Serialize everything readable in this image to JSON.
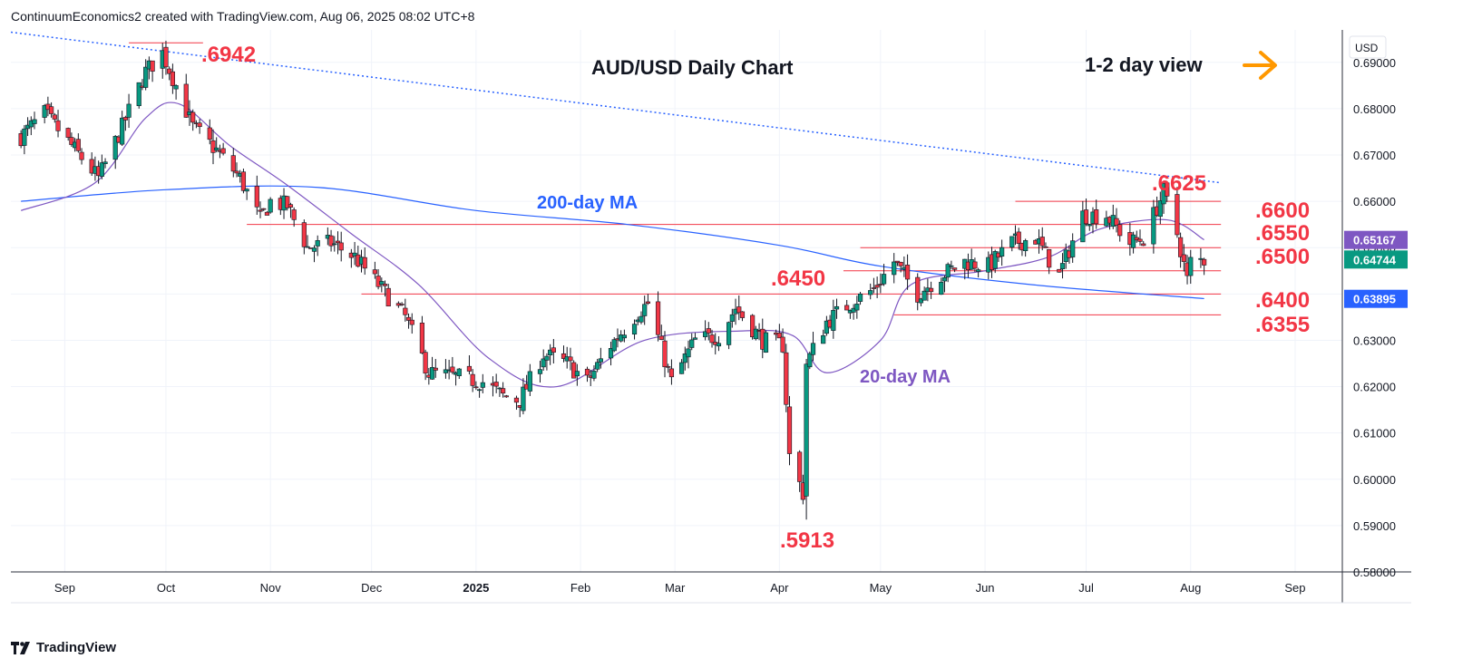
{
  "header": {
    "text": "ContinuumEconomics2 created with TradingView.com, Aug 06, 2025 08:02 UTC+8"
  },
  "footer": {
    "brand": "TradingView",
    "logo_icon": "tradingview-logo-icon"
  },
  "chart_data": {
    "type": "candlestick",
    "symbol": "AUD/USD",
    "title": "AUD/USD Daily Chart",
    "view_label": "1-2 day view",
    "view_icon": "arrow-right-icon",
    "currency": "USD",
    "colors": {
      "up": "#089981",
      "down": "#f23645",
      "level": "#f23645",
      "ma200": "#2962ff",
      "ma20": "#7e57c2",
      "trend": "#2962ff",
      "view_arrow": "#ff9800"
    },
    "ylim": [
      0.58,
      0.697
    ],
    "y_ticks": [
      "0.69000",
      "0.68000",
      "0.67000",
      "0.66000",
      "0.65000",
      "0.64000",
      "0.63000",
      "0.62000",
      "0.61000",
      "0.60000",
      "0.59000",
      "0.58000"
    ],
    "y_tick_values": [
      0.69,
      0.68,
      0.67,
      0.66,
      0.65,
      0.64,
      0.63,
      0.62,
      0.61,
      0.6,
      0.59,
      0.58
    ],
    "x_ticks": [
      "Sep",
      "Oct",
      "Nov",
      "Dec",
      "2025",
      "Feb",
      "Mar",
      "Apr",
      "May",
      "Jun",
      "Jul",
      "Aug",
      "Sep"
    ],
    "x_tick_dates": [
      "2024-09-01",
      "2024-10-01",
      "2024-11-01",
      "2024-12-01",
      "2025-01-01",
      "2025-02-01",
      "2025-03-01",
      "2025-04-01",
      "2025-05-01",
      "2025-06-01",
      "2025-07-01",
      "2025-08-01",
      "2025-09-01"
    ],
    "x_range": [
      "2024-08-16",
      "2025-09-15"
    ],
    "ohlc_anchors": [
      {
        "d": "2024-08-19",
        "c": 0.674
      },
      {
        "d": "2024-08-26",
        "c": 0.679
      },
      {
        "d": "2024-09-03",
        "c": 0.672
      },
      {
        "d": "2024-09-11",
        "c": 0.665
      },
      {
        "d": "2024-09-18",
        "c": 0.676
      },
      {
        "d": "2024-09-25",
        "c": 0.688
      },
      {
        "d": "2024-09-30",
        "c": 0.692
      },
      {
        "d": "2024-10-04",
        "c": 0.685
      },
      {
        "d": "2024-10-09",
        "c": 0.676
      },
      {
        "d": "2024-10-16",
        "c": 0.671
      },
      {
        "d": "2024-10-23",
        "c": 0.665
      },
      {
        "d": "2024-10-29",
        "c": 0.656
      },
      {
        "d": "2024-11-01",
        "c": 0.66
      },
      {
        "d": "2024-11-06",
        "c": 0.659
      },
      {
        "d": "2024-11-12",
        "c": 0.65
      },
      {
        "d": "2024-11-19",
        "c": 0.651
      },
      {
        "d": "2024-11-26",
        "c": 0.648
      },
      {
        "d": "2024-12-03",
        "c": 0.642
      },
      {
        "d": "2024-12-11",
        "c": 0.635
      },
      {
        "d": "2024-12-18",
        "c": 0.623
      },
      {
        "d": "2024-12-27",
        "c": 0.622
      },
      {
        "d": "2025-01-03",
        "c": 0.621
      },
      {
        "d": "2025-01-09",
        "c": 0.618
      },
      {
        "d": "2025-01-14",
        "c": 0.617
      },
      {
        "d": "2025-01-21",
        "c": 0.627
      },
      {
        "d": "2025-01-28",
        "c": 0.625
      },
      {
        "d": "2025-02-03",
        "c": 0.621
      },
      {
        "d": "2025-02-10",
        "c": 0.629
      },
      {
        "d": "2025-02-18",
        "c": 0.636
      },
      {
        "d": "2025-02-21",
        "c": 0.638
      },
      {
        "d": "2025-02-28",
        "c": 0.621
      },
      {
        "d": "2025-03-07",
        "c": 0.63
      },
      {
        "d": "2025-03-14",
        "c": 0.631
      },
      {
        "d": "2025-03-19",
        "c": 0.637
      },
      {
        "d": "2025-03-27",
        "c": 0.63
      },
      {
        "d": "2025-04-02",
        "c": 0.629
      },
      {
        "d": "2025-04-04",
        "c": 0.605
      },
      {
        "d": "2025-04-08",
        "c": 0.597
      },
      {
        "d": "2025-04-09",
        "c": 0.625
      },
      {
        "d": "2025-04-15",
        "c": 0.634
      },
      {
        "d": "2025-04-22",
        "c": 0.638
      },
      {
        "d": "2025-04-29",
        "c": 0.641
      },
      {
        "d": "2025-05-05",
        "c": 0.647
      },
      {
        "d": "2025-05-12",
        "c": 0.64
      },
      {
        "d": "2025-05-19",
        "c": 0.644
      },
      {
        "d": "2025-05-26",
        "c": 0.647
      },
      {
        "d": "2025-06-02",
        "c": 0.646
      },
      {
        "d": "2025-06-09",
        "c": 0.651
      },
      {
        "d": "2025-06-16",
        "c": 0.652
      },
      {
        "d": "2025-06-23",
        "c": 0.644
      },
      {
        "d": "2025-06-30",
        "c": 0.657
      },
      {
        "d": "2025-07-07",
        "c": 0.657
      },
      {
        "d": "2025-07-14",
        "c": 0.651
      },
      {
        "d": "2025-07-18",
        "c": 0.652
      },
      {
        "d": "2025-07-24",
        "c": 0.662
      },
      {
        "d": "2025-07-28",
        "c": 0.653
      },
      {
        "d": "2025-07-31",
        "c": 0.643
      },
      {
        "d": "2025-08-01",
        "c": 0.647
      },
      {
        "d": "2025-08-05",
        "c": 0.6474
      }
    ],
    "extremes": [
      {
        "d": "2024-09-30",
        "low": 0.6905,
        "high": 0.6942
      },
      {
        "d": "2025-04-09",
        "low": 0.5913,
        "high": 0.613
      },
      {
        "d": "2025-07-24",
        "low": 0.659,
        "high": 0.6625
      }
    ],
    "ma200": [
      [
        "2024-08-19",
        0.66
      ],
      [
        "2024-10-01",
        0.6625
      ],
      [
        "2024-11-15",
        0.663
      ],
      [
        "2025-01-01",
        0.658
      ],
      [
        "2025-02-15",
        0.655
      ],
      [
        "2025-04-01",
        0.6505
      ],
      [
        "2025-05-01",
        0.646
      ],
      [
        "2025-06-15",
        0.642
      ],
      [
        "2025-08-05",
        0.639
      ]
    ],
    "ma20": [
      [
        "2024-08-19",
        0.658
      ],
      [
        "2024-09-10",
        0.664
      ],
      [
        "2024-09-25",
        0.678
      ],
      [
        "2024-10-05",
        0.681
      ],
      [
        "2024-10-20",
        0.672
      ],
      [
        "2024-11-05",
        0.664
      ],
      [
        "2024-11-25",
        0.653
      ],
      [
        "2024-12-15",
        0.642
      ],
      [
        "2025-01-05",
        0.626
      ],
      [
        "2025-01-25",
        0.62
      ],
      [
        "2025-02-20",
        0.63
      ],
      [
        "2025-03-20",
        0.632
      ],
      [
        "2025-04-05",
        0.631
      ],
      [
        "2025-04-15",
        0.623
      ],
      [
        "2025-05-01",
        0.63
      ],
      [
        "2025-05-10",
        0.642
      ],
      [
        "2025-06-01",
        0.645
      ],
      [
        "2025-06-20",
        0.648
      ],
      [
        "2025-07-05",
        0.654
      ],
      [
        "2025-07-25",
        0.656
      ],
      [
        "2025-08-05",
        0.6517
      ]
    ],
    "trendline": {
      "from": [
        "2024-08-16",
        0.6965
      ],
      "to": [
        "2025-08-10",
        0.664
      ]
    },
    "levels": [
      {
        "label": ".6600",
        "value": 0.66,
        "from": "2025-06-10",
        "to": "2025-08-10"
      },
      {
        "label": ".6550",
        "value": 0.655,
        "from": "2024-10-25",
        "to": "2025-08-10"
      },
      {
        "label": ".6500",
        "value": 0.65,
        "from": "2025-04-25",
        "to": "2025-08-10"
      },
      {
        "label": ".6450",
        "value": 0.645,
        "from": "2025-04-20",
        "to": "2025-08-10"
      },
      {
        "label": ".6400",
        "value": 0.64,
        "from": "2024-11-28",
        "to": "2025-08-10"
      },
      {
        "label": ".6355",
        "value": 0.6355,
        "from": "2025-05-05",
        "to": "2025-08-10"
      },
      {
        "label": ".6942",
        "value": 0.6942,
        "from": "2024-09-20",
        "to": "2024-10-12"
      }
    ],
    "annotations": [
      {
        "text": ".6942",
        "color": "#f23645"
      },
      {
        "text": ".6625",
        "color": "#f23645"
      },
      {
        "text": ".6600",
        "color": "#f23645"
      },
      {
        "text": ".6550",
        "color": "#f23645"
      },
      {
        "text": ".6500",
        "color": "#f23645"
      },
      {
        "text": ".6450",
        "color": "#f23645"
      },
      {
        "text": ".6400",
        "color": "#f23645"
      },
      {
        "text": ".6355",
        "color": "#f23645"
      },
      {
        "text": ".5913",
        "color": "#f23645"
      },
      {
        "text": "200-day MA",
        "color": "#2962ff"
      },
      {
        "text": "20-day MA",
        "color": "#7e57c2"
      }
    ],
    "price_badges": [
      {
        "text": "0.65167",
        "value": 0.65167,
        "color": "#7e57c2"
      },
      {
        "text": "0.64744",
        "value": 0.64744,
        "color": "#089981"
      },
      {
        "text": "0.63895",
        "value": 0.63895,
        "color": "#2962ff"
      }
    ],
    "grid": true
  }
}
